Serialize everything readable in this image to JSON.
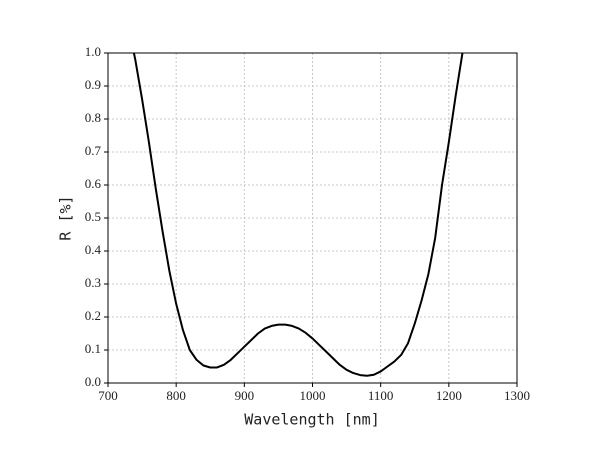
{
  "chart_data": {
    "type": "line",
    "x_label": "Wavelength [nm]",
    "y_label": "R [%]",
    "x": [
      738,
      740,
      750,
      760,
      770,
      780,
      790,
      800,
      810,
      820,
      830,
      840,
      850,
      860,
      870,
      880,
      890,
      900,
      910,
      920,
      930,
      940,
      950,
      960,
      970,
      980,
      990,
      1000,
      1010,
      1020,
      1030,
      1040,
      1050,
      1060,
      1070,
      1080,
      1090,
      1100,
      1110,
      1120,
      1130,
      1140,
      1150,
      1160,
      1170,
      1180,
      1190,
      1200,
      1210,
      1220
    ],
    "series": [
      {
        "color": "#000000",
        "values": [
          1.0,
          0.98,
          0.86,
          0.73,
          0.59,
          0.46,
          0.34,
          0.24,
          0.16,
          0.1,
          0.07,
          0.053,
          0.047,
          0.047,
          0.055,
          0.07,
          0.09,
          0.11,
          0.13,
          0.15,
          0.165,
          0.173,
          0.177,
          0.177,
          0.173,
          0.165,
          0.152,
          0.135,
          0.115,
          0.095,
          0.075,
          0.055,
          0.04,
          0.03,
          0.024,
          0.022,
          0.025,
          0.035,
          0.05,
          0.065,
          0.085,
          0.12,
          0.18,
          0.25,
          0.33,
          0.44,
          0.6,
          0.73,
          0.87,
          1.0
        ]
      }
    ],
    "xlim": [
      700,
      1300
    ],
    "xticks": [
      700,
      800,
      900,
      1000,
      1100,
      1200,
      1300
    ],
    "ylim": [
      0,
      1.0
    ],
    "yticks": [
      {
        "value": 0,
        "label": "0.0"
      },
      0.1,
      0.2,
      0.3,
      0.4,
      0.5,
      0.6,
      0.7,
      0.8,
      0.9,
      {
        "value": 1.0,
        "label": "1.0"
      }
    ],
    "grid": true
  }
}
